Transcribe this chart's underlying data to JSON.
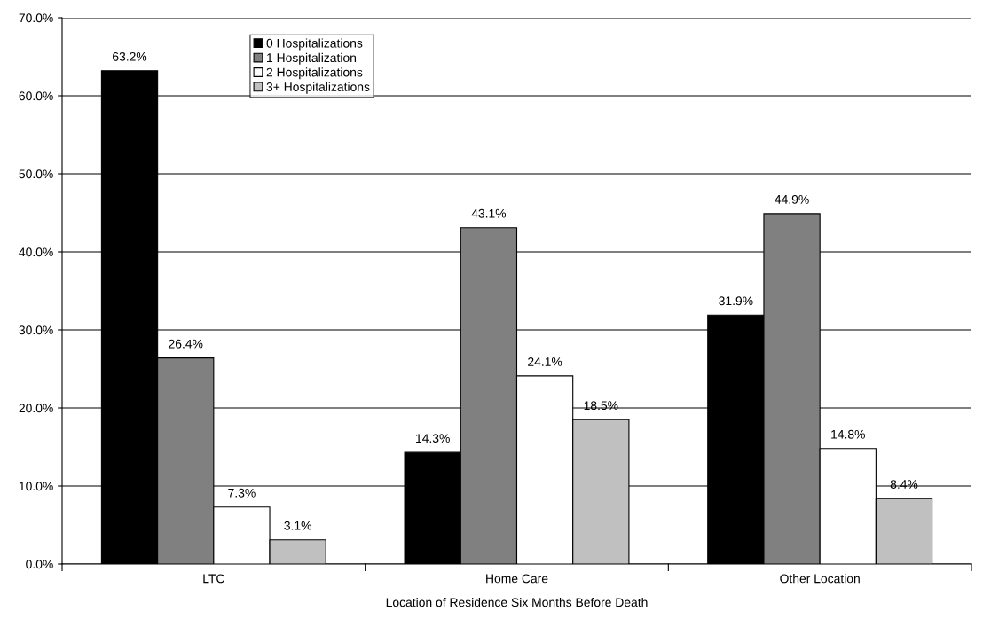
{
  "chart_data": {
    "type": "bar",
    "xlabel": "Location of Residence Six Months Before Death",
    "categories": [
      "LTC",
      "Home Care",
      "Other Location"
    ],
    "series": [
      {
        "name": "0 Hospitalizations",
        "color": "#000000",
        "values": [
          63.2,
          14.3,
          31.9
        ],
        "value_labels": [
          "63.2%",
          "14.3%",
          "31.9%"
        ]
      },
      {
        "name": "1 Hospitalization",
        "color": "#808080",
        "values": [
          26.4,
          43.1,
          44.9
        ],
        "value_labels": [
          "26.4%",
          "43.1%",
          "44.9%"
        ]
      },
      {
        "name": "2 Hospitalizations",
        "color": "#ffffff",
        "values": [
          7.3,
          24.1,
          14.8
        ],
        "value_labels": [
          "7.3%",
          "24.1%",
          "14.8%"
        ]
      },
      {
        "name": "3+ Hospitalizations",
        "color": "#c0c0c0",
        "values": [
          3.1,
          18.5,
          8.4
        ],
        "value_labels": [
          "3.1%",
          "18.5%",
          "8.4%"
        ]
      }
    ],
    "ylim": [
      0,
      70
    ],
    "yticks": [
      {
        "value": 0,
        "label": "0.0%"
      },
      {
        "value": 10,
        "label": "10.0%"
      },
      {
        "value": 20,
        "label": "20.0%"
      },
      {
        "value": 30,
        "label": "30.0%"
      },
      {
        "value": 40,
        "label": "40.0%"
      },
      {
        "value": 50,
        "label": "50.0%"
      },
      {
        "value": 60,
        "label": "60.0%"
      },
      {
        "value": 70,
        "label": "70.0%"
      }
    ],
    "grid": "y",
    "legend": "top left"
  }
}
